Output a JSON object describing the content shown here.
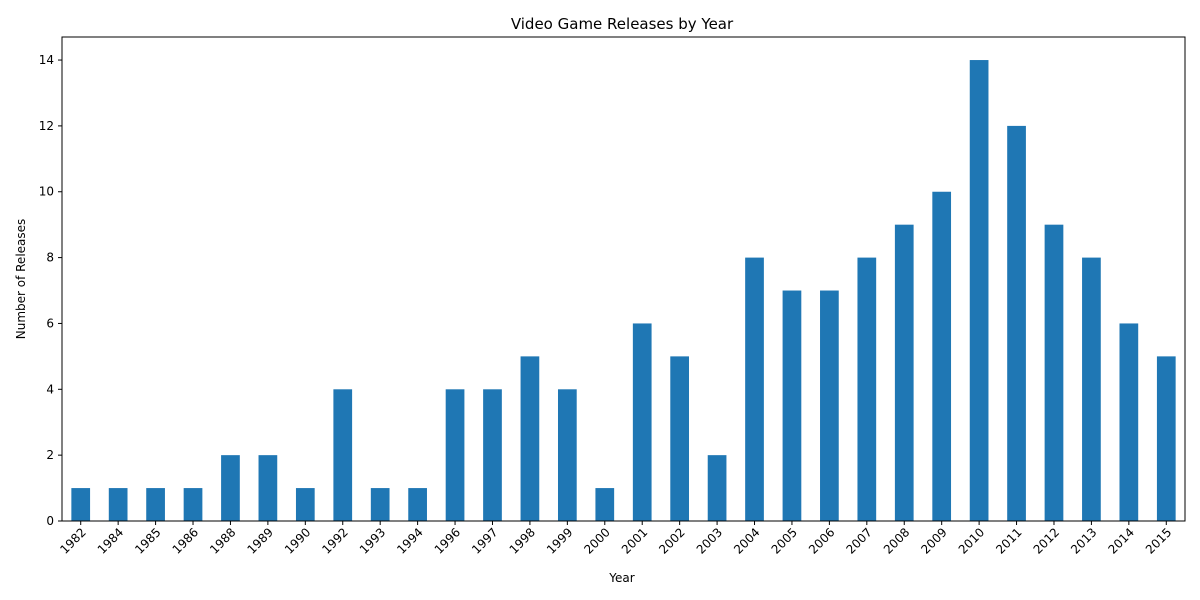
{
  "chart_data": {
    "type": "bar",
    "title": "Video Game Releases by Year",
    "xlabel": "Year",
    "ylabel": "Number of Releases",
    "categories": [
      "1982",
      "1984",
      "1985",
      "1986",
      "1988",
      "1989",
      "1990",
      "1992",
      "1993",
      "1994",
      "1996",
      "1997",
      "1998",
      "1999",
      "2000",
      "2001",
      "2002",
      "2003",
      "2004",
      "2005",
      "2006",
      "2007",
      "2008",
      "2009",
      "2010",
      "2011",
      "2012",
      "2013",
      "2014",
      "2015"
    ],
    "values": [
      1,
      1,
      1,
      1,
      2,
      2,
      1,
      4,
      1,
      1,
      4,
      4,
      5,
      4,
      1,
      6,
      5,
      2,
      8,
      7,
      7,
      8,
      9,
      10,
      14,
      12,
      9,
      8,
      6,
      5
    ],
    "ylim": [
      0,
      14.7
    ],
    "yticks": [
      0,
      2,
      4,
      6,
      8,
      10,
      12,
      14
    ],
    "grid": false,
    "bar_color": "#1f77b4"
  }
}
